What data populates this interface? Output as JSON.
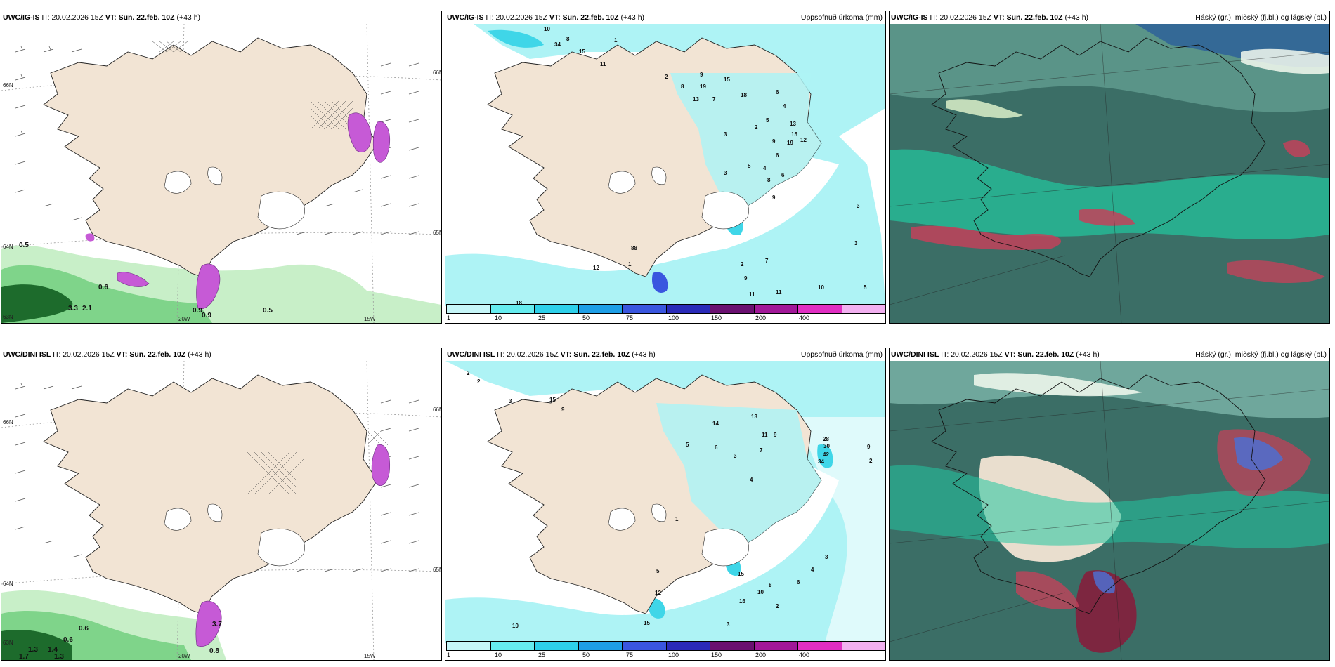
{
  "colors": {
    "land": "#f2e4d4",
    "sea": "#ffffff",
    "precip_light": "#aef3f5",
    "precip_mid": "#3fd6e8",
    "magenta": "#c65ad6",
    "green_light": "#c8efc8",
    "green_mid": "#7fd48a",
    "green_dark": "#1d6b2c",
    "cloud_dark": "#3b6e66",
    "cloud_teal": "#22c7a0",
    "cloud_red": "#c2425a",
    "cloud_blue": "#4d6fd0"
  },
  "panels": [
    {
      "id": "ig-wind",
      "model": "UWC/IG-IS",
      "it_label": "IT:",
      "it_value": "20.02.2026 15Z",
      "vt_label": "VT:",
      "vt_value": "Sun. 22.feb. 10Z",
      "lead": "(+43 h)",
      "field_title": "",
      "axis": {
        "lat_left_top": "66N",
        "lat_right_top": "66N",
        "lat_left_mid": "64N",
        "lat_right_mid": "65N",
        "lon_left": "20W",
        "lon_right": "15W",
        "lat_left_bot": "63N"
      },
      "values": [
        "0.5",
        "0.6",
        "3.3",
        "2.1",
        "0.9",
        "0.9",
        "0.5"
      ]
    },
    {
      "id": "ig-precip",
      "model": "UWC/IG-IS",
      "it_label": "IT:",
      "it_value": "20.02.2026 15Z",
      "vt_label": "VT:",
      "vt_value": "Sun. 22.feb. 10Z",
      "lead": "(+43 h)",
      "field_title": "Uppsöfnuð úrkoma (mm)",
      "values": [
        "10",
        "34",
        "8",
        "15",
        "1",
        "11",
        "2",
        "8",
        "13",
        "19",
        "15",
        "18",
        "9",
        "7",
        "6",
        "4",
        "3",
        "2",
        "5",
        "13",
        "15",
        "12",
        "19",
        "9",
        "6",
        "3",
        "5",
        "4",
        "8",
        "6",
        "3",
        "9",
        "7",
        "2",
        "1",
        "88",
        "9",
        "11",
        "11",
        "10",
        "5",
        "3",
        "18",
        "12"
      ]
    },
    {
      "id": "ig-cloud",
      "model": "UWC/IG-IS",
      "it_label": "IT:",
      "it_value": "20.02.2026 15Z",
      "vt_label": "VT:",
      "vt_value": "Sun. 22.feb. 10Z",
      "lead": "(+43 h)",
      "field_title": "Háský (gr.), miðský (fj.bl.) og lágský (bl.)"
    },
    {
      "id": "dini-wind",
      "model": "UWC/DINI ISL",
      "it_label": "IT:",
      "it_value": "20.02.2026 15Z",
      "vt_label": "VT:",
      "vt_value": "Sun. 22.feb. 10Z",
      "lead": "(+43 h)",
      "field_title": "",
      "axis": {
        "lat_left_top": "66N",
        "lat_right_top": "66N",
        "lat_left_mid": "64N",
        "lat_right_mid": "65N",
        "lon_left": "20W",
        "lon_right": "15W",
        "lat_left_bot": "63N"
      },
      "values": [
        "0.6",
        "0.6",
        "1.3",
        "1.4",
        "1.7",
        "1.3",
        "0.8",
        "3.7"
      ]
    },
    {
      "id": "dini-precip",
      "model": "UWC/DINI ISL",
      "it_label": "IT:",
      "it_value": "20.02.2026 15Z",
      "vt_label": "VT:",
      "vt_value": "Sun. 22.feb. 10Z",
      "lead": "(+43 h)",
      "field_title": "Uppsöfnuð úrkoma (mm)",
      "values": [
        "2",
        "2",
        "15",
        "3",
        "9",
        "1",
        "5",
        "14",
        "13",
        "11",
        "9",
        "6",
        "7",
        "3",
        "4",
        "28",
        "30",
        "42",
        "34",
        "9",
        "2",
        "15",
        "5",
        "12",
        "10",
        "8",
        "6",
        "4",
        "3",
        "2",
        "16",
        "15",
        "3",
        "10"
      ]
    },
    {
      "id": "dini-cloud",
      "model": "UWC/DINI ISL",
      "it_label": "IT:",
      "it_value": "20.02.2026 15Z",
      "vt_label": "VT:",
      "vt_value": "Sun. 22.feb. 10Z",
      "lead": "(+43 h)",
      "field_title": "Háský (gr.), miðský (fj.bl.) og lágský (bl.)"
    }
  ],
  "legend": {
    "ticks": [
      "1",
      "10",
      "25",
      "50",
      "75",
      "100",
      "150",
      "200",
      "400"
    ],
    "colors": [
      "#c6f6f8",
      "#66ecef",
      "#2ed0ea",
      "#1e9ee6",
      "#3a56df",
      "#2a2ab8",
      "#6a1070",
      "#a11898",
      "#e02ec2",
      "#f2b0f0"
    ]
  }
}
